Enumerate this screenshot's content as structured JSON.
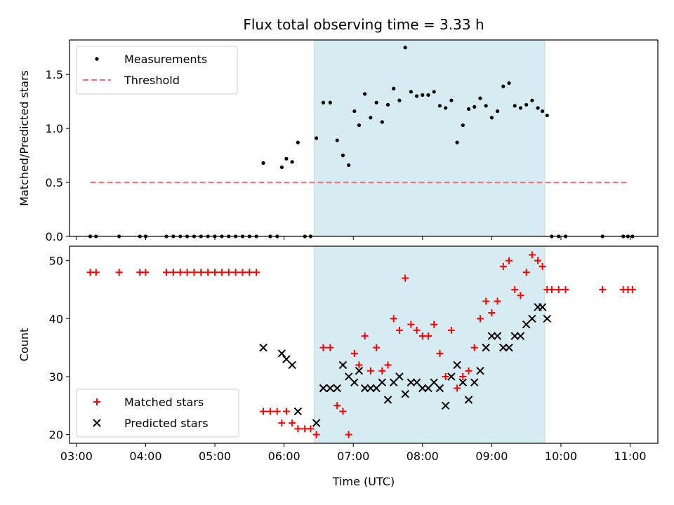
{
  "figure": {
    "title": "Flux total observing time = 3.33 h"
  },
  "chart_data": [
    {
      "type": "scatter",
      "title": "Flux total observing time = 3.33 h",
      "xlabel": "",
      "ylabel": "Matched/Predicted stars",
      "xlim": [
        "02:54",
        "11:24"
      ],
      "ylim": [
        0,
        1.82
      ],
      "yticks": [
        "0.0",
        "0.5",
        "1.0",
        "1.5"
      ],
      "shaded_span": {
        "from": "06:26",
        "to": "09:46",
        "color": "#add8e6"
      },
      "legend": {
        "position": "top-left",
        "entries": [
          "Measurements",
          "Threshold"
        ]
      },
      "threshold": {
        "name": "Threshold",
        "value": 0.5,
        "from": "03:12",
        "to": "10:58",
        "color": "#ff6f6f",
        "style": "dashed"
      },
      "series": [
        {
          "name": "Measurements",
          "marker": "dot",
          "color": "#000000",
          "points": [
            [
              "03:12",
              0
            ],
            [
              "03:17",
              0
            ],
            [
              "03:37",
              0
            ],
            [
              "03:55",
              0
            ],
            [
              "04:00",
              0
            ],
            [
              "04:18",
              0
            ],
            [
              "04:24",
              0
            ],
            [
              "04:30",
              0
            ],
            [
              "04:36",
              0
            ],
            [
              "04:42",
              0
            ],
            [
              "04:48",
              0
            ],
            [
              "04:54",
              0
            ],
            [
              "05:00",
              0
            ],
            [
              "05:06",
              0
            ],
            [
              "05:12",
              0
            ],
            [
              "05:18",
              0
            ],
            [
              "05:24",
              0
            ],
            [
              "05:30",
              0
            ],
            [
              "05:36",
              0
            ],
            [
              "05:42",
              0.68
            ],
            [
              "05:48",
              0
            ],
            [
              "05:54",
              0
            ],
            [
              "05:58",
              0.64
            ],
            [
              "06:02",
              0.72
            ],
            [
              "06:07",
              0.69
            ],
            [
              "06:12",
              0.87
            ],
            [
              "06:18",
              0
            ],
            [
              "06:23",
              0
            ],
            [
              "06:28",
              0.91
            ],
            [
              "06:34",
              1.24
            ],
            [
              "06:40",
              1.24
            ],
            [
              "06:46",
              0.89
            ],
            [
              "06:51",
              0.75
            ],
            [
              "06:56",
              0.66
            ],
            [
              "07:01",
              1.16
            ],
            [
              "07:05",
              1.03
            ],
            [
              "07:10",
              1.32
            ],
            [
              "07:15",
              1.1
            ],
            [
              "07:20",
              1.24
            ],
            [
              "07:25",
              1.06
            ],
            [
              "07:30",
              1.22
            ],
            [
              "07:35",
              1.37
            ],
            [
              "07:40",
              1.26
            ],
            [
              "07:45",
              1.75
            ],
            [
              "07:50",
              1.34
            ],
            [
              "07:55",
              1.3
            ],
            [
              "08:00",
              1.31
            ],
            [
              "08:05",
              1.31
            ],
            [
              "08:10",
              1.34
            ],
            [
              "08:15",
              1.21
            ],
            [
              "08:20",
              1.19
            ],
            [
              "08:25",
              1.26
            ],
            [
              "08:30",
              0.87
            ],
            [
              "08:35",
              1.03
            ],
            [
              "08:40",
              1.18
            ],
            [
              "08:45",
              1.2
            ],
            [
              "08:50",
              1.28
            ],
            [
              "08:55",
              1.21
            ],
            [
              "09:00",
              1.1
            ],
            [
              "09:05",
              1.16
            ],
            [
              "09:10",
              1.39
            ],
            [
              "09:15",
              1.42
            ],
            [
              "09:20",
              1.21
            ],
            [
              "09:25",
              1.19
            ],
            [
              "09:30",
              1.22
            ],
            [
              "09:35",
              1.26
            ],
            [
              "09:40",
              1.19
            ],
            [
              "09:44",
              1.16
            ],
            [
              "09:48",
              1.12
            ],
            [
              "09:52",
              0
            ],
            [
              "09:58",
              0
            ],
            [
              "10:04",
              0
            ],
            [
              "10:36",
              0
            ],
            [
              "10:54",
              0
            ],
            [
              "10:58",
              0
            ],
            [
              "11:02",
              0
            ]
          ]
        }
      ]
    },
    {
      "type": "scatter",
      "title": "",
      "xlabel": "Time (UTC)",
      "ylabel": "Count",
      "xlim": [
        "02:54",
        "11:24"
      ],
      "ylim": [
        18.5,
        52.5
      ],
      "yticks": [
        "20",
        "30",
        "40",
        "50"
      ],
      "xticks": [
        "03:00",
        "04:00",
        "05:00",
        "06:00",
        "07:00",
        "08:00",
        "09:00",
        "10:00",
        "11:00"
      ],
      "shaded_span": {
        "from": "06:26",
        "to": "09:46",
        "color": "#add8e6"
      },
      "legend": {
        "position": "bottom-left",
        "entries": [
          "Matched stars",
          "Predicted stars"
        ]
      },
      "series": [
        {
          "name": "Matched stars",
          "marker": "plus",
          "color": "#ff0000",
          "points": [
            [
              "03:12",
              48
            ],
            [
              "03:17",
              48
            ],
            [
              "03:37",
              48
            ],
            [
              "03:55",
              48
            ],
            [
              "04:00",
              48
            ],
            [
              "04:18",
              48
            ],
            [
              "04:24",
              48
            ],
            [
              "04:30",
              48
            ],
            [
              "04:36",
              48
            ],
            [
              "04:42",
              48
            ],
            [
              "04:48",
              48
            ],
            [
              "04:54",
              48
            ],
            [
              "05:00",
              48
            ],
            [
              "05:06",
              48
            ],
            [
              "05:12",
              48
            ],
            [
              "05:18",
              48
            ],
            [
              "05:24",
              48
            ],
            [
              "05:30",
              48
            ],
            [
              "05:36",
              48
            ],
            [
              "05:42",
              24
            ],
            [
              "05:48",
              24
            ],
            [
              "05:54",
              24
            ],
            [
              "05:58",
              22
            ],
            [
              "06:02",
              24
            ],
            [
              "06:07",
              22
            ],
            [
              "06:12",
              21
            ],
            [
              "06:18",
              21
            ],
            [
              "06:23",
              21
            ],
            [
              "06:28",
              20
            ],
            [
              "06:34",
              35
            ],
            [
              "06:40",
              35
            ],
            [
              "06:46",
              25
            ],
            [
              "06:51",
              24
            ],
            [
              "06:56",
              20
            ],
            [
              "07:01",
              34
            ],
            [
              "07:05",
              32
            ],
            [
              "07:10",
              37
            ],
            [
              "07:15",
              31
            ],
            [
              "07:20",
              35
            ],
            [
              "07:25",
              31
            ],
            [
              "07:30",
              32
            ],
            [
              "07:35",
              40
            ],
            [
              "07:40",
              38
            ],
            [
              "07:45",
              47
            ],
            [
              "07:50",
              39
            ],
            [
              "07:55",
              38
            ],
            [
              "08:00",
              37
            ],
            [
              "08:05",
              37
            ],
            [
              "08:10",
              39
            ],
            [
              "08:15",
              34
            ],
            [
              "08:20",
              30
            ],
            [
              "08:25",
              38
            ],
            [
              "08:30",
              28
            ],
            [
              "08:35",
              30
            ],
            [
              "08:40",
              31
            ],
            [
              "08:45",
              35
            ],
            [
              "08:50",
              40
            ],
            [
              "08:55",
              43
            ],
            [
              "09:00",
              41
            ],
            [
              "09:05",
              43
            ],
            [
              "09:10",
              49
            ],
            [
              "09:15",
              50
            ],
            [
              "09:20",
              45
            ],
            [
              "09:25",
              44
            ],
            [
              "09:30",
              48
            ],
            [
              "09:35",
              51
            ],
            [
              "09:40",
              50
            ],
            [
              "09:44",
              49
            ],
            [
              "09:48",
              45
            ],
            [
              "09:52",
              45
            ],
            [
              "09:58",
              45
            ],
            [
              "10:04",
              45
            ],
            [
              "10:36",
              45
            ],
            [
              "10:54",
              45
            ],
            [
              "10:58",
              45
            ],
            [
              "11:02",
              45
            ]
          ]
        },
        {
          "name": "Predicted stars",
          "marker": "x",
          "color": "#000000",
          "points": [
            [
              "05:42",
              35
            ],
            [
              "05:58",
              34
            ],
            [
              "06:02",
              33
            ],
            [
              "06:07",
              32
            ],
            [
              "06:12",
              24
            ],
            [
              "06:28",
              22
            ],
            [
              "06:34",
              28
            ],
            [
              "06:40",
              28
            ],
            [
              "06:46",
              28
            ],
            [
              "06:51",
              32
            ],
            [
              "06:56",
              30
            ],
            [
              "07:01",
              29
            ],
            [
              "07:05",
              31
            ],
            [
              "07:10",
              28
            ],
            [
              "07:15",
              28
            ],
            [
              "07:20",
              28
            ],
            [
              "07:25",
              29
            ],
            [
              "07:30",
              26
            ],
            [
              "07:35",
              29
            ],
            [
              "07:40",
              30
            ],
            [
              "07:45",
              27
            ],
            [
              "07:50",
              29
            ],
            [
              "07:55",
              29
            ],
            [
              "08:00",
              28
            ],
            [
              "08:05",
              28
            ],
            [
              "08:10",
              29
            ],
            [
              "08:15",
              28
            ],
            [
              "08:20",
              25
            ],
            [
              "08:25",
              30
            ],
            [
              "08:30",
              32
            ],
            [
              "08:35",
              29
            ],
            [
              "08:40",
              26
            ],
            [
              "08:45",
              29
            ],
            [
              "08:50",
              31
            ],
            [
              "08:55",
              35
            ],
            [
              "09:00",
              37
            ],
            [
              "09:05",
              37
            ],
            [
              "09:10",
              35
            ],
            [
              "09:15",
              35
            ],
            [
              "09:20",
              37
            ],
            [
              "09:25",
              37
            ],
            [
              "09:30",
              39
            ],
            [
              "09:35",
              40
            ],
            [
              "09:40",
              42
            ],
            [
              "09:44",
              42
            ],
            [
              "09:48",
              40
            ]
          ]
        }
      ]
    }
  ]
}
